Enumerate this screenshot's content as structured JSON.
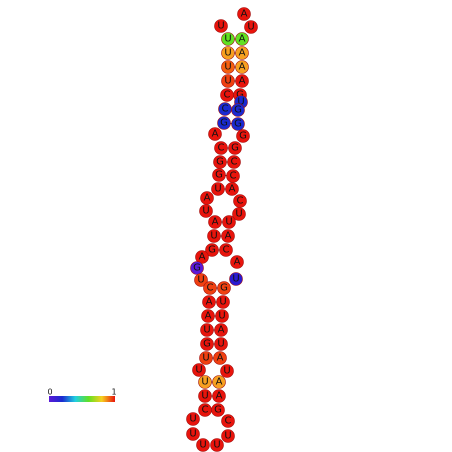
{
  "nodes": [
    {
      "label": "A",
      "color": "#e8140c"
    },
    {
      "label": "U",
      "color": "#e8140c"
    },
    {
      "label": "U",
      "color": "#e8140c"
    },
    {
      "label": "U",
      "color": "#62e022"
    },
    {
      "label": "A",
      "color": "#62e022"
    },
    {
      "label": "U",
      "color": "#f7a020"
    },
    {
      "label": "A",
      "color": "#f7a020"
    },
    {
      "label": "U",
      "color": "#f56010"
    },
    {
      "label": "A",
      "color": "#f7a020"
    },
    {
      "label": "U",
      "color": "#f04010"
    },
    {
      "label": "A",
      "color": "#e8140c"
    },
    {
      "label": "C",
      "color": "#e8140c"
    },
    {
      "label": "G",
      "color": "#e8140c"
    },
    {
      "label": "C",
      "color": "#1a2ad0"
    },
    {
      "label": "U",
      "color": "#1a2ad0"
    },
    {
      "label": "G",
      "color": "#1a2ad0"
    },
    {
      "label": "G",
      "color": "#1a2ad0"
    },
    {
      "label": "G",
      "color": "#1a2ad0"
    },
    {
      "label": "A",
      "color": "#e8140c"
    },
    {
      "label": "G",
      "color": "#e8140c"
    },
    {
      "label": "C",
      "color": "#e8140c"
    },
    {
      "label": "G",
      "color": "#e8140c"
    },
    {
      "label": "G",
      "color": "#e8140c"
    },
    {
      "label": "C",
      "color": "#e8140c"
    },
    {
      "label": "G",
      "color": "#e8140c"
    },
    {
      "label": "C",
      "color": "#e8140c"
    },
    {
      "label": "U",
      "color": "#e8140c"
    },
    {
      "label": "A",
      "color": "#e8140c"
    },
    {
      "label": "A",
      "color": "#e8140c"
    },
    {
      "label": "C",
      "color": "#e8140c"
    },
    {
      "label": "U",
      "color": "#e8140c"
    },
    {
      "label": "U",
      "color": "#e8140c"
    },
    {
      "label": "A",
      "color": "#e8140c"
    },
    {
      "label": "U",
      "color": "#e8140c"
    },
    {
      "label": "U",
      "color": "#e8140c"
    },
    {
      "label": "A",
      "color": "#e8140c"
    },
    {
      "label": "G",
      "color": "#e8140c"
    },
    {
      "label": "C",
      "color": "#e8140c"
    },
    {
      "label": "A",
      "color": "#e8140c"
    },
    {
      "label": "A",
      "color": "#e8140c"
    },
    {
      "label": "G",
      "color": "#5a1ad8"
    },
    {
      "label": "U",
      "color": "#2a1ad0"
    },
    {
      "label": "U",
      "color": "#f04010"
    },
    {
      "label": "C",
      "color": "#f04010"
    },
    {
      "label": "G",
      "color": "#f04010"
    },
    {
      "label": "A",
      "color": "#e8140c"
    },
    {
      "label": "U",
      "color": "#e8140c"
    },
    {
      "label": "A",
      "color": "#e8140c"
    },
    {
      "label": "U",
      "color": "#e8140c"
    },
    {
      "label": "U",
      "color": "#e8140c"
    },
    {
      "label": "A",
      "color": "#e8140c"
    },
    {
      "label": "G",
      "color": "#e8140c"
    },
    {
      "label": "U",
      "color": "#e8140c"
    },
    {
      "label": "U",
      "color": "#f04010"
    },
    {
      "label": "A",
      "color": "#f04010"
    },
    {
      "label": "U",
      "color": "#e8140c"
    },
    {
      "label": "U",
      "color": "#e8140c"
    },
    {
      "label": "U",
      "color": "#f7a020"
    },
    {
      "label": "A",
      "color": "#f7a020"
    },
    {
      "label": "U",
      "color": "#e8140c"
    },
    {
      "label": "A",
      "color": "#e8140c"
    },
    {
      "label": "C",
      "color": "#e8140c"
    },
    {
      "label": "G",
      "color": "#e8140c"
    },
    {
      "label": "U",
      "color": "#e8140c"
    },
    {
      "label": "C",
      "color": "#e8140c"
    },
    {
      "label": "U",
      "color": "#e8140c"
    },
    {
      "label": "U",
      "color": "#e8140c"
    },
    {
      "label": "U",
      "color": "#e8140c"
    },
    {
      "label": "U",
      "color": "#e8140c"
    }
  ],
  "colorbar": {
    "min_label": "0",
    "max_label": "1"
  }
}
